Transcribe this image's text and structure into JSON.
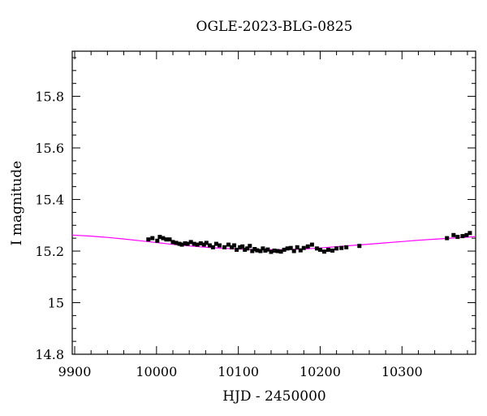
{
  "chart_data": {
    "type": "scatter",
    "title": "OGLE-2023-BLG-0825",
    "xlabel": "HJD - 2450000",
    "ylabel": "I magnitude",
    "xlim": [
      9897,
      10390
    ],
    "ylim": [
      15.975,
      14.8
    ],
    "y_inverted": true,
    "grid": false,
    "x_ticks": [
      9900,
      10000,
      10100,
      10200,
      10300
    ],
    "x_tick_labels": [
      "9900",
      "10000",
      "10100",
      "10200",
      "10300"
    ],
    "y_ticks": [
      14.8,
      15.0,
      15.2,
      15.4,
      15.6,
      15.8
    ],
    "y_tick_labels": [
      "14.8",
      "15",
      "15.2",
      "15.4",
      "15.6",
      "15.8"
    ],
    "x_minor_step": 20,
    "y_minor_step": 0.05,
    "colors": {
      "points": "#000000",
      "model": "#ff00ff",
      "frame": "#000000"
    },
    "series": [
      {
        "kind": "points",
        "x": [
          9990,
          9995,
          10001,
          10004,
          10008,
          10012,
          10016,
          10020,
          10024,
          10028,
          10031,
          10035,
          10038,
          10042,
          10046,
          10050,
          10054,
          10058,
          10061,
          10065,
          10069,
          10073,
          10077,
          10083,
          10088,
          10092,
          10095,
          10098,
          10102,
          10105,
          10108,
          10111,
          10114,
          10117,
          10120,
          10123,
          10127,
          10130,
          10133,
          10136,
          10140,
          10144,
          10148,
          10152,
          10156,
          10160,
          10164,
          10168,
          10172,
          10176,
          10180,
          10185,
          10190,
          10196,
          10200,
          10205,
          10210,
          10215,
          10220,
          10226,
          10232,
          10248,
          10355,
          10363,
          10368,
          10374,
          10379,
          10383
        ],
        "y": [
          15.245,
          15.25,
          15.24,
          15.255,
          15.25,
          15.245,
          15.245,
          15.235,
          15.232,
          15.228,
          15.225,
          15.23,
          15.228,
          15.235,
          15.228,
          15.225,
          15.23,
          15.225,
          15.232,
          15.222,
          15.215,
          15.228,
          15.222,
          15.215,
          15.225,
          15.215,
          15.222,
          15.205,
          15.215,
          15.218,
          15.205,
          15.21,
          15.22,
          15.2,
          15.208,
          15.203,
          15.2,
          15.21,
          15.202,
          15.206,
          15.197,
          15.202,
          15.2,
          15.198,
          15.205,
          15.21,
          15.212,
          15.2,
          15.215,
          15.203,
          15.212,
          15.218,
          15.225,
          15.21,
          15.205,
          15.198,
          15.205,
          15.202,
          15.21,
          15.212,
          15.215,
          15.22,
          15.25,
          15.262,
          15.255,
          15.258,
          15.262,
          15.27
        ]
      },
      {
        "kind": "model",
        "x": [
          9897,
          9920,
          9940,
          9960,
          9980,
          10000,
          10020,
          10040,
          10060,
          10080,
          10100,
          10120,
          10140,
          10150,
          10160,
          10180,
          10200,
          10220,
          10240,
          10260,
          10280,
          10300,
          10320,
          10340,
          10360,
          10380,
          10390
        ],
        "y": [
          15.262,
          15.258,
          15.253,
          15.247,
          15.24,
          15.233,
          15.226,
          15.22,
          15.215,
          15.211,
          15.208,
          15.206,
          15.205,
          15.205,
          15.206,
          15.208,
          15.212,
          15.217,
          15.222,
          15.227,
          15.232,
          15.237,
          15.242,
          15.246,
          15.25,
          15.254,
          15.256
        ]
      }
    ]
  }
}
